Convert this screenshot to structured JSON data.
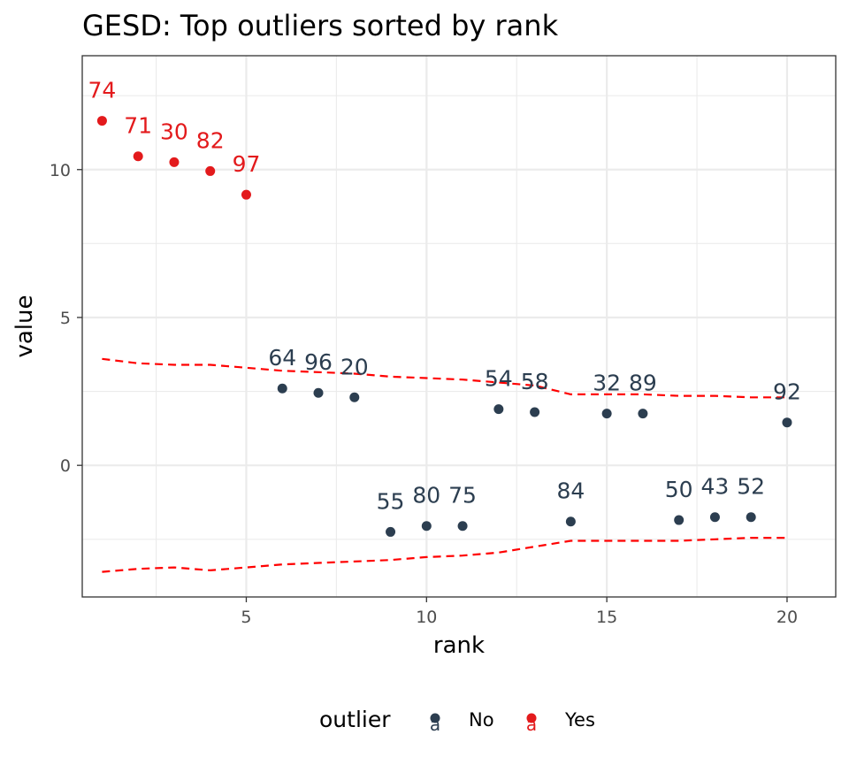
{
  "chart_data": {
    "type": "scatter",
    "title": "GESD: Top outliers sorted by rank",
    "xlabel": "rank",
    "ylabel": "value",
    "xlim": [
      0.45,
      21.35
    ],
    "ylim": [
      -4.45,
      13.85
    ],
    "x_ticks": [
      5,
      10,
      15,
      20
    ],
    "y_ticks": [
      0,
      5,
      10
    ],
    "grid": true,
    "legend": {
      "title": "outlier",
      "position": "bottom",
      "entries": [
        {
          "label": "No",
          "color": "#2c3e50"
        },
        {
          "label": "Yes",
          "color": "#e31a1c"
        }
      ]
    },
    "colors": {
      "No": "#2c3e50",
      "Yes": "#e31a1c",
      "limits": "#ff0000"
    },
    "series": [
      {
        "name": "Yes",
        "points": [
          {
            "x": 1,
            "y": 11.65,
            "label": "74"
          },
          {
            "x": 2,
            "y": 10.45,
            "label": "71"
          },
          {
            "x": 3,
            "y": 10.25,
            "label": "30"
          },
          {
            "x": 4,
            "y": 9.95,
            "label": "82"
          },
          {
            "x": 5,
            "y": 9.15,
            "label": "97"
          }
        ]
      },
      {
        "name": "No",
        "points": [
          {
            "x": 6,
            "y": 2.6,
            "label": "64"
          },
          {
            "x": 7,
            "y": 2.45,
            "label": "96"
          },
          {
            "x": 8,
            "y": 2.3,
            "label": "20"
          },
          {
            "x": 9,
            "y": -2.25,
            "label": "55"
          },
          {
            "x": 10,
            "y": -2.05,
            "label": "80"
          },
          {
            "x": 11,
            "y": -2.05,
            "label": "75"
          },
          {
            "x": 12,
            "y": 1.9,
            "label": "54"
          },
          {
            "x": 13,
            "y": 1.8,
            "label": "58"
          },
          {
            "x": 14,
            "y": -1.9,
            "label": "84"
          },
          {
            "x": 15,
            "y": 1.75,
            "label": "32"
          },
          {
            "x": 16,
            "y": 1.75,
            "label": "89"
          },
          {
            "x": 17,
            "y": -1.85,
            "label": "50"
          },
          {
            "x": 18,
            "y": -1.75,
            "label": "43"
          },
          {
            "x": 19,
            "y": -1.75,
            "label": "52"
          },
          {
            "x": 20,
            "y": 1.45,
            "label": "92"
          }
        ]
      }
    ],
    "limit_lines": [
      {
        "x": [
          1,
          2,
          3,
          4,
          5,
          6,
          7,
          8,
          9,
          10,
          11,
          12,
          13,
          14,
          15,
          16,
          17,
          18,
          19,
          20
        ],
        "y": [
          3.6,
          3.45,
          3.4,
          3.4,
          3.3,
          3.2,
          3.15,
          3.1,
          3.0,
          2.95,
          2.9,
          2.8,
          2.7,
          2.4,
          2.4,
          2.4,
          2.35,
          2.35,
          2.3,
          2.3
        ]
      },
      {
        "x": [
          1,
          2,
          3,
          4,
          5,
          6,
          7,
          8,
          9,
          10,
          11,
          12,
          13,
          14,
          15,
          16,
          17,
          18,
          19,
          20
        ],
        "y": [
          -3.6,
          -3.5,
          -3.45,
          -3.55,
          -3.45,
          -3.35,
          -3.3,
          -3.25,
          -3.2,
          -3.1,
          -3.05,
          -2.95,
          -2.75,
          -2.55,
          -2.55,
          -2.55,
          -2.55,
          -2.5,
          -2.45,
          -2.45
        ]
      }
    ]
  }
}
